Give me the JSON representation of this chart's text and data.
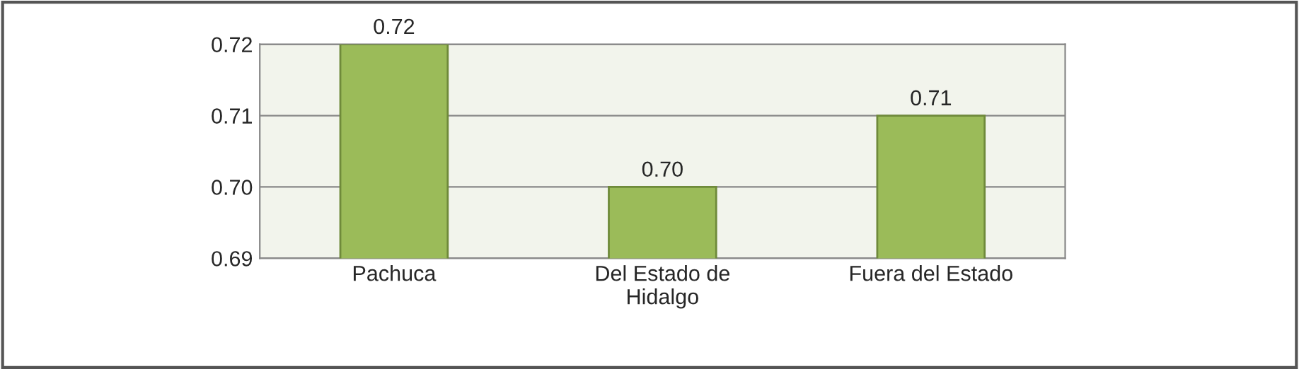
{
  "chart_data": {
    "type": "bar",
    "categories": [
      "Pachuca",
      "Del Estado de\nHidalgo",
      "Fuera del Estado"
    ],
    "values": [
      0.72,
      0.7,
      0.71
    ],
    "color": "#9bbb59",
    "ylim": [
      0.69,
      0.72
    ],
    "yticks": [
      {
        "value": 0.69,
        "label": "0.69"
      },
      {
        "value": 0.7,
        "label": "0.70"
      },
      {
        "value": 0.71,
        "label": "0.71"
      },
      {
        "value": 0.72,
        "label": "0.72"
      }
    ],
    "grid": "y",
    "value_labels": [
      "0.72",
      "0.70",
      "0.71"
    ]
  }
}
